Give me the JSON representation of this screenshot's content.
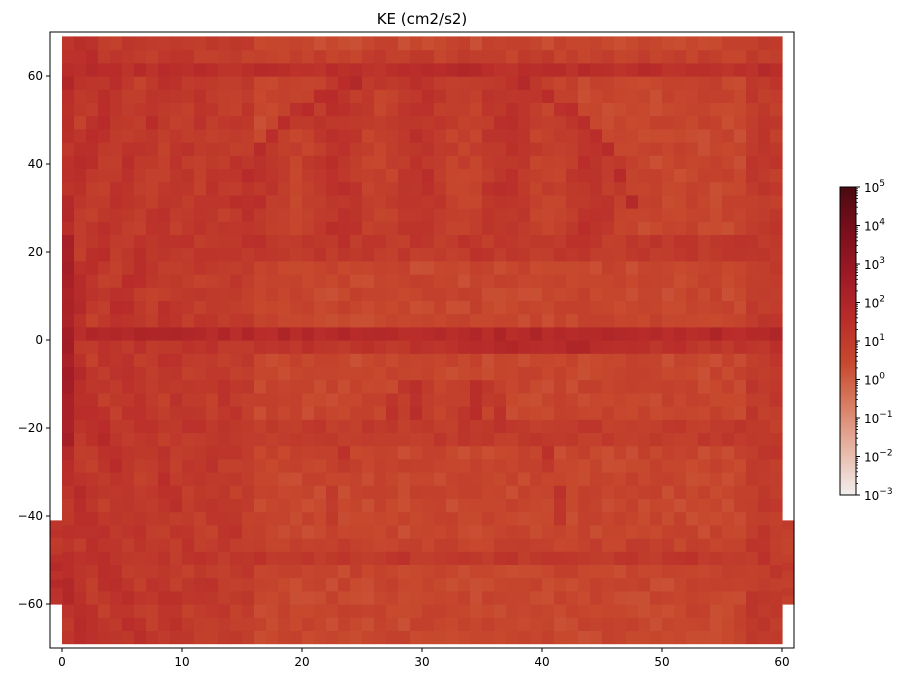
{
  "chart_data": {
    "type": "heatmap",
    "title": "KE (cm2/s2)",
    "xlabel": "",
    "ylabel": "",
    "xlim": [
      -1,
      61
    ],
    "ylim": [
      -70,
      70
    ],
    "x_ticks": [
      0,
      10,
      20,
      30,
      40,
      50,
      60
    ],
    "y_ticks": [
      -60,
      -40,
      -20,
      0,
      20,
      40,
      60
    ],
    "x_tick_labels": [
      "0",
      "10",
      "20",
      "30",
      "40",
      "50",
      "60"
    ],
    "y_tick_labels": [
      "−60",
      "−40",
      "−20",
      "0",
      "20",
      "40",
      "60"
    ],
    "grid": false,
    "colorbar": {
      "scale": "log",
      "range": [
        0.001,
        100000
      ],
      "ticks": [
        {
          "base": "10",
          "exp": "−3"
        },
        {
          "base": "10",
          "exp": "−2"
        },
        {
          "base": "10",
          "exp": "−1"
        },
        {
          "base": "10",
          "exp": "0"
        },
        {
          "base": "10",
          "exp": "1"
        },
        {
          "base": "10",
          "exp": "2"
        },
        {
          "base": "10",
          "exp": "3"
        },
        {
          "base": "10",
          "exp": "4"
        },
        {
          "base": "10",
          "exp": "5"
        }
      ],
      "colors": [
        "#f2efee",
        "#e8b8a8",
        "#d98066",
        "#c7492d",
        "#b92c2a",
        "#9d1a25",
        "#7a0f1c",
        "#4a0a10"
      ]
    },
    "field": {
      "x_range": [
        0,
        60
      ],
      "y_range": [
        -69,
        69
      ],
      "southern_strip_x_range": [
        -1,
        61
      ],
      "southern_strip_y_range": [
        -60,
        -41
      ],
      "description_free": true
    },
    "features": {
      "jets": [
        {
          "y": 21,
          "log10": 1.2
        },
        {
          "y": -21,
          "log10": 1.1
        },
        {
          "y": -49,
          "log10": 1.0
        },
        {
          "y": 62,
          "log10": 1.4
        },
        {
          "y": 1,
          "log10": 1.8
        }
      ],
      "dome_north": {
        "x0": 14,
        "x1": 48,
        "y_base": 22,
        "y_top": 62
      },
      "dome_south": {
        "x0": 22,
        "x1": 42,
        "y_base": -45,
        "y_top": -9
      },
      "western_boundary_peak_log10": 2.3,
      "equatorial_band_log10": [
        0.5,
        2.2
      ]
    }
  }
}
